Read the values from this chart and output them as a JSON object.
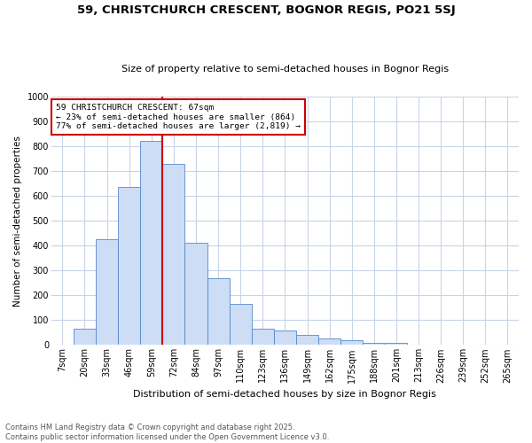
{
  "title1": "59, CHRISTCHURCH CRESCENT, BOGNOR REGIS, PO21 5SJ",
  "title2": "Size of property relative to semi-detached houses in Bognor Regis",
  "xlabel": "Distribution of semi-detached houses by size in Bognor Regis",
  "ylabel": "Number of semi-detached properties",
  "categories": [
    "7sqm",
    "20sqm",
    "33sqm",
    "46sqm",
    "59sqm",
    "72sqm",
    "84sqm",
    "97sqm",
    "110sqm",
    "123sqm",
    "136sqm",
    "149sqm",
    "162sqm",
    "175sqm",
    "188sqm",
    "201sqm",
    "213sqm",
    "226sqm",
    "239sqm",
    "252sqm",
    "265sqm"
  ],
  "values": [
    2,
    65,
    425,
    635,
    820,
    730,
    410,
    270,
    165,
    65,
    60,
    40,
    25,
    20,
    10,
    10,
    0,
    0,
    0,
    0,
    0
  ],
  "bar_color": "#ccddf5",
  "bar_edge_color": "#5588cc",
  "vline_x_idx": 4.5,
  "vline_color": "#cc0000",
  "annotation_title": "59 CHRISTCHURCH CRESCENT: 67sqm",
  "annotation_line1": "← 23% of semi-detached houses are smaller (864)",
  "annotation_line2": "77% of semi-detached houses are larger (2,819) →",
  "annotation_box_color": "#ffffff",
  "annotation_box_edge": "#cc0000",
  "ylim": [
    0,
    1000
  ],
  "yticks": [
    0,
    100,
    200,
    300,
    400,
    500,
    600,
    700,
    800,
    900,
    1000
  ],
  "footer1": "Contains HM Land Registry data © Crown copyright and database right 2025.",
  "footer2": "Contains public sector information licensed under the Open Government Licence v3.0.",
  "bg_color": "#ffffff",
  "grid_color": "#c8d4e8",
  "title1_fontsize": 9.5,
  "title2_fontsize": 8,
  "ylabel_fontsize": 7.5,
  "xlabel_fontsize": 8,
  "tick_fontsize": 7,
  "footer_fontsize": 6
}
